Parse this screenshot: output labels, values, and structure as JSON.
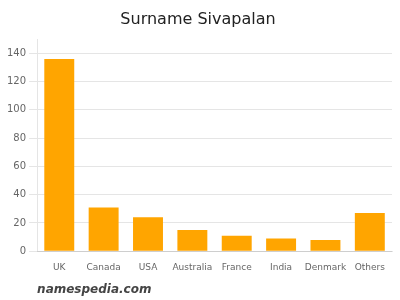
{
  "chart_data": {
    "type": "bar",
    "title": "Surname Sivapalan",
    "categories": [
      "UK",
      "Canada",
      "USA",
      "Australia",
      "France",
      "India",
      "Denmark",
      "Others"
    ],
    "values": [
      136,
      31,
      24,
      15,
      11,
      9,
      8,
      27
    ],
    "color": "#FFA500",
    "ylim": [
      0,
      150
    ],
    "yticks": [
      0,
      20,
      40,
      60,
      80,
      100,
      120,
      140
    ],
    "grid": true,
    "annotations": [
      "namespedia.com"
    ]
  }
}
